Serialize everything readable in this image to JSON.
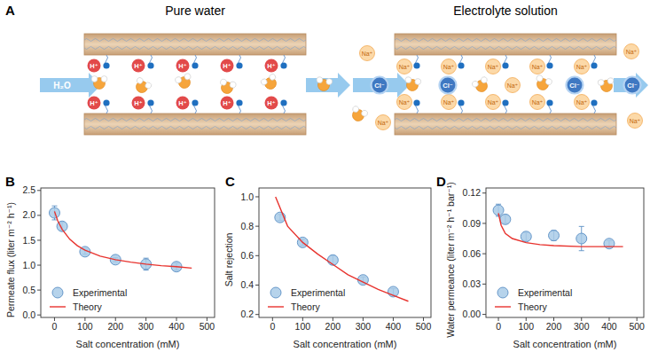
{
  "diagram": {
    "panel": "A",
    "left": {
      "title": "Pure water",
      "inlet": "H₂O",
      "ion": "H⁺"
    },
    "right": {
      "title": "Electrolyte solution",
      "cation": "Na⁺",
      "anion": "Cl⁻"
    }
  },
  "chart_data": [
    {
      "type": "scatter",
      "title": "B",
      "x_label": "Salt concentration (mM)",
      "y_label": "Permeate flux (liter m⁻² h⁻¹)",
      "xlim": [
        -45,
        525
      ],
      "xticks": [
        0,
        100,
        200,
        300,
        400,
        500
      ],
      "ylim": [
        -0.05,
        2.55
      ],
      "yticks": [
        {
          "value": 0,
          "label": "0.0"
        },
        {
          "value": 0.5,
          "label": "0.5"
        },
        {
          "value": 1,
          "label": "1.0"
        },
        {
          "value": 1.5,
          "label": "1.5"
        },
        {
          "value": 2,
          "label": "2.0"
        },
        {
          "value": 2.5,
          "label": "2.5"
        }
      ],
      "grid": false,
      "legend": "lower left",
      "series": [
        {
          "name": "Experimental",
          "type": "scatter",
          "marker": "circle",
          "color": "#a9cbe8",
          "x": [
            0,
            25,
            100,
            200,
            300,
            400
          ],
          "values": [
            2.05,
            1.78,
            1.27,
            1.11,
            1.02,
            0.97
          ],
          "errors": [
            0.14,
            0.08,
            0.05,
            0.04,
            0.12,
            0.07
          ]
        },
        {
          "name": "Theory",
          "type": "line",
          "line_style": "solid",
          "color": "#e8332e",
          "x": [
            0,
            10,
            25,
            50,
            75,
            100,
            150,
            200,
            250,
            300,
            350,
            400,
            450
          ],
          "values": [
            2.08,
            1.9,
            1.72,
            1.52,
            1.39,
            1.3,
            1.18,
            1.11,
            1.06,
            1.02,
            0.99,
            0.97,
            0.94
          ]
        }
      ]
    },
    {
      "type": "scatter",
      "title": "C",
      "x_label": "Salt concentration (mM)",
      "y_label": "Salt  rejection",
      "xlim": [
        -45,
        525
      ],
      "xticks": [
        0,
        100,
        200,
        300,
        400,
        500
      ],
      "ylim": [
        0.18,
        1.06
      ],
      "yticks": [
        0.2,
        0.4,
        0.6,
        0.8,
        {
          "value": 1,
          "label": "1.0"
        }
      ],
      "grid": false,
      "legend": "lower left",
      "series": [
        {
          "name": "Experimental",
          "type": "scatter",
          "marker": "circle",
          "color": "#a9cbe8",
          "x": [
            25,
            100,
            200,
            300,
            400
          ],
          "values": [
            0.86,
            0.69,
            0.57,
            0.435,
            0.355
          ],
          "errors": [
            0.02,
            0.02,
            0.03,
            0.02,
            0.02
          ]
        },
        {
          "name": "Theory",
          "type": "line",
          "line_style": "solid",
          "color": "#e8332e",
          "x": [
            10,
            50,
            100,
            150,
            200,
            250,
            300,
            350,
            400,
            450
          ],
          "values": [
            1.0,
            0.8,
            0.69,
            0.61,
            0.54,
            0.47,
            0.42,
            0.37,
            0.33,
            0.29
          ]
        }
      ]
    },
    {
      "type": "scatter",
      "title": "D",
      "x_label": "Salt concentration (mM)",
      "y_label": "Water permeance (liter m⁻² h⁻¹ bar⁻¹)",
      "xlim": [
        -45,
        525
      ],
      "xticks": [
        0,
        100,
        200,
        300,
        400,
        500
      ],
      "ylim": [
        -0.003,
        0.125
      ],
      "yticks": [
        {
          "value": 0,
          "label": "0.00"
        },
        0.03,
        0.06,
        0.09,
        0.12
      ],
      "grid": false,
      "legend": "lower left",
      "series": [
        {
          "name": "Experimental",
          "type": "scatter",
          "marker": "circle",
          "color": "#a9cbe8",
          "x": [
            0,
            25,
            100,
            200,
            300,
            400
          ],
          "values": [
            0.103,
            0.094,
            0.077,
            0.078,
            0.075,
            0.07
          ],
          "errors": [
            0.006,
            0.004,
            0.004,
            0.005,
            0.012,
            0.003
          ]
        },
        {
          "name": "Theory",
          "type": "line",
          "line_style": "solid",
          "color": "#e8332e",
          "x": [
            0,
            10,
            25,
            50,
            100,
            150,
            200,
            300,
            400,
            450
          ],
          "values": [
            0.1,
            0.088,
            0.08,
            0.075,
            0.071,
            0.069,
            0.068,
            0.067,
            0.067,
            0.067
          ]
        }
      ]
    }
  ]
}
